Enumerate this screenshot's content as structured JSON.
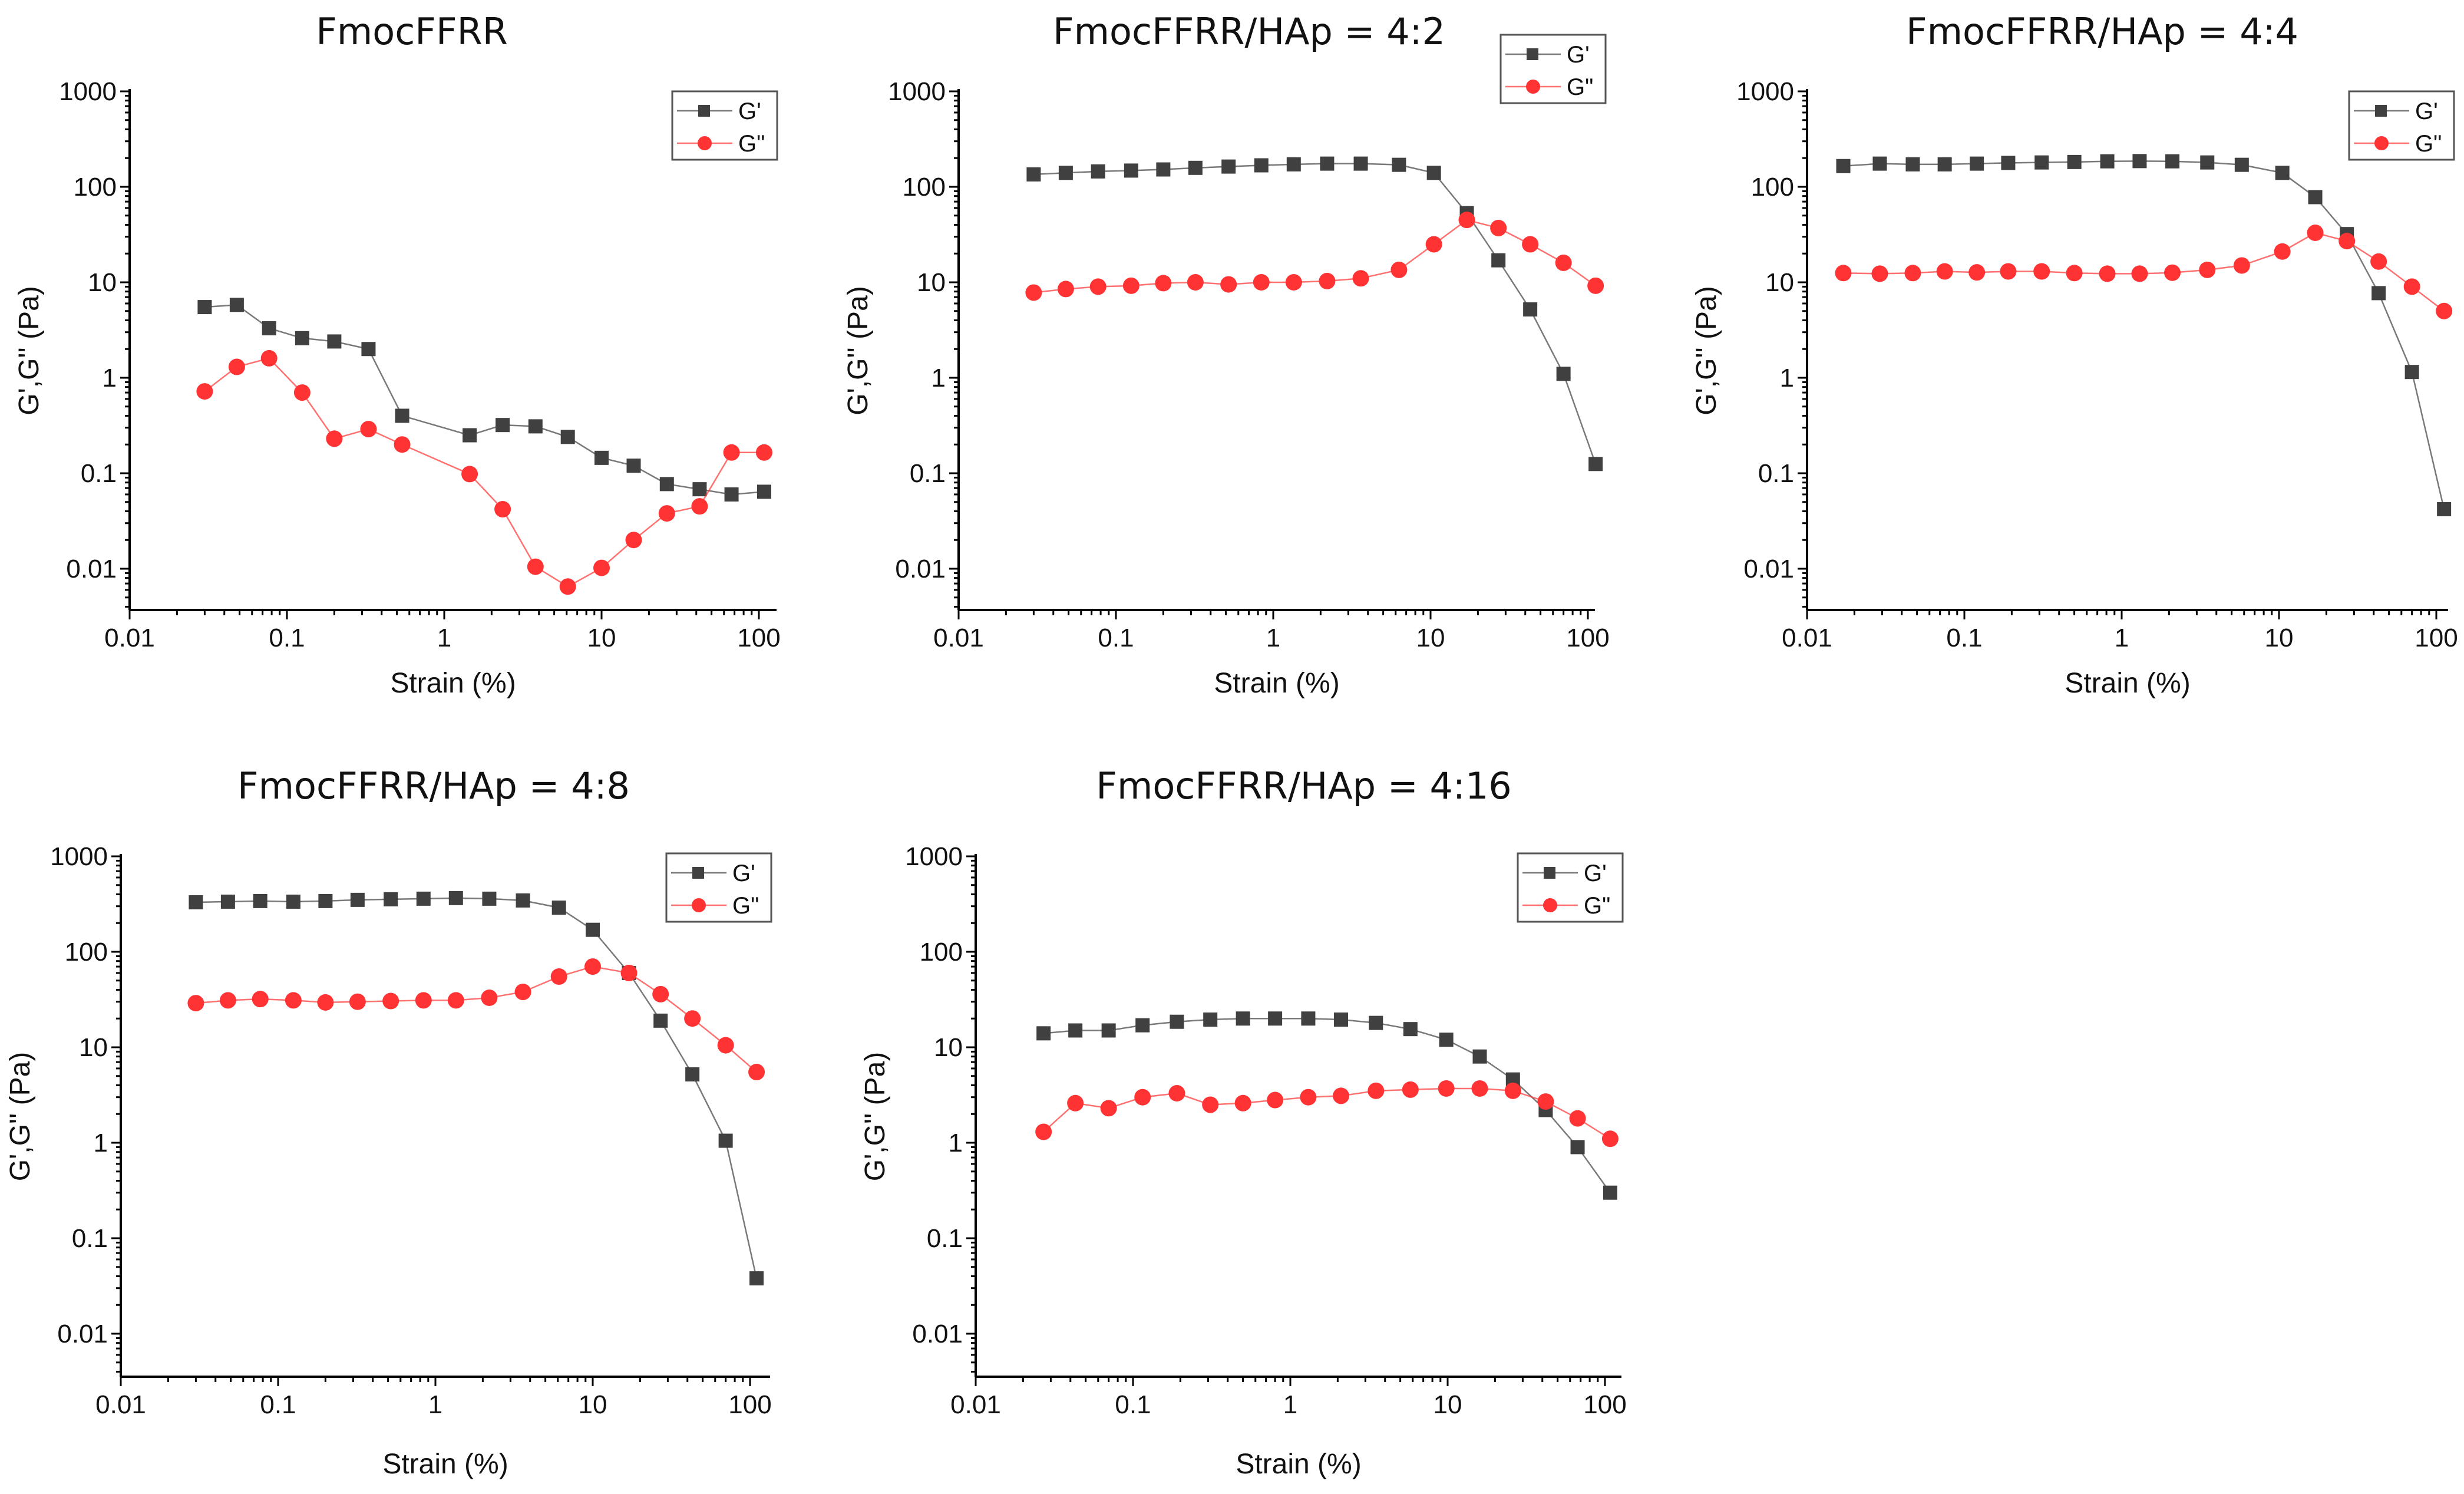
{
  "chart_data": [
    {
      "type": "line",
      "title": "FmocFFRR",
      "xlabel": "Strain (%)",
      "ylabel": "G',G'' (Pa)",
      "xscale": "log",
      "yscale": "log",
      "xlim": [
        0.01,
        130
      ],
      "ylim": [
        0.004,
        1000
      ],
      "xticks": [
        "0.01",
        "0.1",
        "1",
        "10",
        "100"
      ],
      "yticks": [
        "0.01",
        "0.1",
        "1",
        "10",
        "100",
        "1000"
      ],
      "legend": "top-right",
      "x": [
        0.03,
        0.048,
        0.077,
        0.125,
        0.2,
        0.33,
        0.54,
        1.45,
        2.35,
        3.8,
        6.1,
        10,
        16,
        26,
        42,
        67,
        108
      ],
      "series": [
        {
          "name": "G'",
          "color": "#404040",
          "marker": "square",
          "values": [
            5.5,
            5.8,
            3.3,
            2.6,
            2.4,
            2.0,
            0.4,
            0.25,
            0.32,
            0.31,
            0.24,
            0.145,
            0.12,
            0.077,
            0.068,
            0.06,
            0.064
          ]
        },
        {
          "name": "G\"",
          "color": "#ff3333",
          "marker": "circle",
          "values": [
            0.72,
            1.3,
            1.6,
            0.7,
            0.23,
            0.29,
            0.2,
            0.098,
            0.042,
            0.0105,
            0.0065,
            0.0102,
            0.02,
            0.038,
            0.045,
            0.165,
            0.165
          ]
        }
      ]
    },
    {
      "type": "line",
      "title": "FmocFFRR/HAp = 4:2",
      "xlabel": "Strain (%)",
      "ylabel": "G',G'' (Pa)",
      "xscale": "log",
      "yscale": "log",
      "xlim": [
        0.01,
        130
      ],
      "ylim": [
        0.004,
        1000
      ],
      "xticks": [
        "0.01",
        "0.1",
        "1",
        "10",
        "100"
      ],
      "yticks": [
        "0.01",
        "0.1",
        "1",
        "10",
        "100",
        "1000"
      ],
      "legend": "top-right",
      "x": [
        0.03,
        0.048,
        0.077,
        0.125,
        0.2,
        0.32,
        0.52,
        0.84,
        1.35,
        2.2,
        3.6,
        6.3,
        10.5,
        17,
        27,
        43,
        70,
        112
      ],
      "series": [
        {
          "name": "G'",
          "color": "#404040",
          "marker": "square",
          "values": [
            135,
            140,
            145,
            148,
            152,
            158,
            163,
            168,
            172,
            175,
            175,
            170,
            140,
            53,
            17,
            5.2,
            1.1,
            0.125
          ]
        },
        {
          "name": "G\"",
          "color": "#ff3333",
          "marker": "circle",
          "values": [
            7.8,
            8.5,
            9,
            9.2,
            9.8,
            10,
            9.5,
            10,
            10,
            10.3,
            11,
            13.5,
            25,
            45,
            37,
            25,
            16,
            9.2
          ]
        }
      ]
    },
    {
      "type": "line",
      "title": "FmocFFRR/HAp = 4:4",
      "xlabel": "Strain (%)",
      "ylabel": "G',G'' (Pa)",
      "xscale": "log",
      "yscale": "log",
      "xlim": [
        0.01,
        130
      ],
      "ylim": [
        0.004,
        1000
      ],
      "xticks": [
        "0.01",
        "0.1",
        "1",
        "10",
        "100"
      ],
      "yticks": [
        "0.01",
        "0.1",
        "1",
        "10",
        "100",
        "1000"
      ],
      "legend": "top-right",
      "x": [
        0.017,
        0.029,
        0.047,
        0.075,
        0.12,
        0.19,
        0.31,
        0.5,
        0.81,
        1.3,
        2.1,
        3.5,
        5.8,
        10.5,
        17,
        27,
        43,
        70,
        112
      ],
      "series": [
        {
          "name": "G'",
          "color": "#404040",
          "marker": "square",
          "values": [
            165,
            175,
            172,
            172,
            175,
            178,
            180,
            182,
            185,
            186,
            185,
            180,
            170,
            140,
            78,
            32,
            7.7,
            1.15,
            0.042
          ]
        },
        {
          "name": "G\"",
          "color": "#ff3333",
          "marker": "circle",
          "values": [
            12.5,
            12.3,
            12.5,
            13,
            12.7,
            13,
            13,
            12.5,
            12.3,
            12.3,
            12.6,
            13.5,
            15,
            21,
            33,
            27,
            16.5,
            9,
            5
          ]
        }
      ]
    },
    {
      "type": "line",
      "title": "FmocFFRR/HAp = 4:8",
      "xlabel": "Strain (%)",
      "ylabel": "G',G'' (Pa)",
      "xscale": "log",
      "yscale": "log",
      "xlim": [
        0.01,
        130
      ],
      "ylim": [
        0.004,
        1000
      ],
      "xticks": [
        "0.01",
        "0.1",
        "1",
        "10",
        "100"
      ],
      "yticks": [
        "0.01",
        "0.1",
        "1",
        "10",
        "100",
        "1000"
      ],
      "legend": "top-right",
      "x": [
        0.03,
        0.048,
        0.077,
        0.125,
        0.2,
        0.32,
        0.52,
        0.84,
        1.35,
        2.2,
        3.6,
        6.1,
        10,
        17,
        27,
        43,
        70,
        110
      ],
      "series": [
        {
          "name": "G'",
          "color": "#404040",
          "marker": "square",
          "values": [
            330,
            335,
            340,
            335,
            340,
            350,
            355,
            360,
            365,
            360,
            345,
            290,
            170,
            60,
            19,
            5.2,
            1.05,
            0.038
          ]
        },
        {
          "name": "G\"",
          "color": "#ff3333",
          "marker": "circle",
          "values": [
            29,
            31,
            32,
            31,
            29.5,
            30,
            30.5,
            31,
            31,
            33,
            38,
            55,
            70,
            60,
            36,
            20,
            10.5,
            5.5
          ]
        }
      ]
    },
    {
      "type": "line",
      "title": "FmocFFRR/HAp = 4:16",
      "xlabel": "Strain (%)",
      "ylabel": "G',G'' (Pa)",
      "xscale": "log",
      "yscale": "log",
      "xlim": [
        0.01,
        130
      ],
      "ylim": [
        0.004,
        1000
      ],
      "xticks": [
        "0.01",
        "0.1",
        "1",
        "10",
        "100"
      ],
      "yticks": [
        "0.01",
        "0.1",
        "1",
        "10",
        "100",
        "1000"
      ],
      "legend": "top-right",
      "x": [
        0.027,
        0.043,
        0.07,
        0.115,
        0.19,
        0.31,
        0.5,
        0.8,
        1.3,
        2.1,
        3.5,
        5.8,
        9.8,
        16,
        26,
        42,
        67,
        108
      ],
      "series": [
        {
          "name": "G'",
          "color": "#404040",
          "marker": "square",
          "values": [
            14,
            15,
            15,
            17,
            18.5,
            19.5,
            20,
            20,
            20,
            19.5,
            18,
            15.5,
            12,
            8,
            4.6,
            2.2,
            0.9,
            0.3
          ]
        },
        {
          "name": "G\"",
          "color": "#ff3333",
          "marker": "circle",
          "values": [
            1.3,
            2.6,
            2.3,
            3,
            3.3,
            2.5,
            2.6,
            2.8,
            3,
            3.1,
            3.5,
            3.6,
            3.7,
            3.7,
            3.5,
            2.7,
            1.8,
            1.1
          ]
        }
      ]
    }
  ]
}
